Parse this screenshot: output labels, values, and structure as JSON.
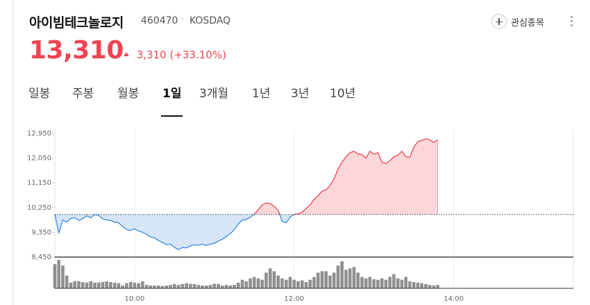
{
  "header": {
    "stock_name": "아이빔테크놀로지",
    "stock_code": "460470",
    "separator": "·",
    "market": "KOSDAQ",
    "favorite_label": "관심종목",
    "icons": {
      "favorite": "plus-circle-icon",
      "more": "more-vertical-icon"
    }
  },
  "price": {
    "current": "13,310",
    "change": "3,310",
    "change_pct": "(+33.10%)",
    "direction": "up"
  },
  "tabs": [
    {
      "label": "일봉",
      "active": false
    },
    {
      "label": "주봉",
      "active": false
    },
    {
      "label": "월봉",
      "active": false
    },
    {
      "label": "1일",
      "active": true
    },
    {
      "label": "3개월",
      "active": false
    },
    {
      "label": "1년",
      "active": false
    },
    {
      "label": "3년",
      "active": false
    },
    {
      "label": "10년",
      "active": false
    }
  ],
  "colors": {
    "up": "#f04452",
    "up_fill": "#fbd7d9",
    "down": "#3d88e0",
    "down_fill": "#d6e6f8",
    "volume": "#8f8f8f"
  },
  "chart_data": {
    "type": "line",
    "y_ticks": [
      "12,950",
      "12,050",
      "11,150",
      "10,250",
      "9,350",
      "8,450"
    ],
    "y_tick_values": [
      12950,
      12050,
      11150,
      10250,
      9350,
      8450
    ],
    "ylim": [
      8450,
      12950
    ],
    "x_ticks": [
      "10:00",
      "12:00",
      "14:00"
    ],
    "x_tick_minutes": [
      600,
      720,
      840
    ],
    "xlim": [
      540,
      930
    ],
    "baseline": 10000,
    "series": [
      {
        "x": [
          540,
          543,
          546,
          549,
          552,
          555,
          558,
          561,
          564,
          567,
          570,
          573,
          576,
          579,
          582,
          585,
          588,
          591,
          594,
          597,
          600,
          603,
          606,
          609,
          612,
          615,
          618,
          621,
          624,
          627,
          630,
          633,
          636,
          639,
          642,
          645,
          648,
          651,
          654,
          657,
          660,
          663,
          666,
          669,
          672,
          675,
          678,
          681,
          684,
          687,
          690,
          693,
          696,
          699,
          702,
          705,
          708,
          711,
          714,
          717,
          720,
          723,
          726,
          729,
          732,
          735,
          738,
          741,
          744,
          747,
          750,
          753,
          756,
          759,
          762,
          765,
          768,
          771,
          774,
          777,
          780,
          783,
          786,
          789,
          792,
          795,
          798,
          801,
          804,
          807,
          810,
          813,
          816,
          819,
          822,
          825,
          828
        ],
        "values": [
          10000,
          9320,
          9800,
          9720,
          9860,
          9880,
          9780,
          9850,
          9950,
          9880,
          10000,
          9960,
          9840,
          9800,
          9780,
          9720,
          9700,
          9560,
          9450,
          9420,
          9480,
          9400,
          9350,
          9280,
          9180,
          9150,
          9050,
          8980,
          8900,
          8920,
          8800,
          8720,
          8800,
          8780,
          8860,
          8900,
          8880,
          8920,
          8870,
          8920,
          8950,
          9030,
          9100,
          9200,
          9300,
          9450,
          9650,
          9800,
          9820,
          9900,
          10000,
          10180,
          10350,
          10420,
          10400,
          10300,
          10150,
          9750,
          9700,
          9900,
          10000,
          10020,
          10080,
          10220,
          10350,
          10550,
          10680,
          10850,
          10900,
          11050,
          11300,
          11650,
          11900,
          12100,
          12250,
          12300,
          12200,
          12180,
          12050,
          12300,
          12200,
          12250,
          11900,
          11850,
          11950,
          12100,
          12150,
          12300,
          12100,
          12080,
          12450,
          12650,
          12700,
          12750,
          12720,
          12620,
          12720
        ]
      }
    ],
    "volume": {
      "x": [
        540,
        543,
        546,
        549,
        552,
        555,
        558,
        561,
        564,
        567,
        570,
        573,
        576,
        579,
        582,
        585,
        588,
        591,
        594,
        597,
        600,
        603,
        606,
        609,
        612,
        615,
        618,
        621,
        624,
        627,
        630,
        633,
        636,
        639,
        642,
        645,
        648,
        651,
        654,
        657,
        660,
        663,
        666,
        669,
        672,
        675,
        678,
        681,
        684,
        687,
        690,
        693,
        696,
        699,
        702,
        705,
        708,
        711,
        714,
        717,
        720,
        723,
        726,
        729,
        732,
        735,
        738,
        741,
        744,
        747,
        750,
        753,
        756,
        759,
        762,
        765,
        768,
        771,
        774,
        777,
        780,
        783,
        786,
        789,
        792,
        795,
        798,
        801,
        804,
        807,
        810,
        813,
        816,
        819,
        822,
        825,
        828
      ],
      "values": [
        85,
        100,
        80,
        45,
        20,
        25,
        25,
        22,
        20,
        25,
        20,
        20,
        22,
        25,
        22,
        20,
        18,
        10,
        18,
        22,
        20,
        18,
        25,
        12,
        10,
        10,
        10,
        8,
        10,
        12,
        15,
        12,
        15,
        18,
        16,
        15,
        12,
        10,
        10,
        12,
        16,
        15,
        10,
        12,
        10,
        12,
        20,
        30,
        25,
        35,
        40,
        35,
        30,
        55,
        70,
        60,
        45,
        35,
        30,
        40,
        30,
        25,
        28,
        22,
        30,
        40,
        55,
        60,
        60,
        45,
        55,
        80,
        95,
        65,
        70,
        75,
        55,
        40,
        35,
        40,
        32,
        30,
        35,
        30,
        40,
        50,
        35,
        30,
        40,
        25,
        22,
        20,
        18,
        15,
        12,
        10,
        12
      ]
    }
  }
}
